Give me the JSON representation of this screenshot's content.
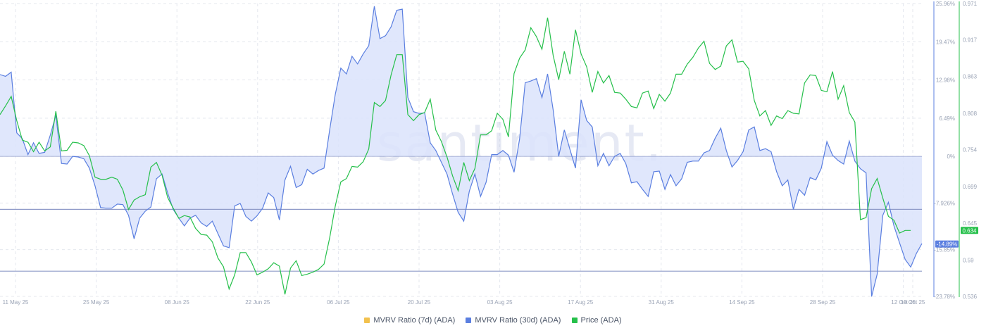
{
  "chart_data": {
    "type": "line",
    "watermark": "·santiment.",
    "x_tick_labels": [
      "11 May 25",
      "25 May 25",
      "08 Jun 25",
      "22 Jun 25",
      "06 Jul 25",
      "20 Jul 25",
      "03 Aug 25",
      "17 Aug 25",
      "31 Aug 25",
      "14 Sep 25",
      "28 Sep 25",
      "12 Oct 25",
      "19 Oct 25"
    ],
    "y_left_ticks": [
      "25.96%",
      "19.47%",
      "12.98%",
      "6.49%",
      "0%",
      "-7.926%",
      "-15.85%",
      "-23.78%"
    ],
    "y_right_ticks": [
      "0.971",
      "0.917",
      "0.863",
      "0.808",
      "0.754",
      "0.699",
      "0.645",
      "0.59",
      "0.536"
    ],
    "y_left_range": [
      -23.78,
      25.96
    ],
    "y_right_range": [
      0.536,
      0.971
    ],
    "current_badges": {
      "mvrv_30d": "-14.89%",
      "price": "0.634"
    },
    "colors": {
      "mvrv_7d": "#f2c14e",
      "mvrv_30d": "#5b7fe0",
      "price": "#26c04b",
      "fill": "#dbe3fb",
      "grid": "#e4e7ee",
      "ref": "#8f9bc9"
    },
    "reference_levels": [
      -9.0,
      -19.5
    ],
    "series": [
      {
        "name": "MVRV Ratio (7d) (ADA)",
        "values": []
      },
      {
        "name": "MVRV Ratio (30d) (ADA)",
        "values": [
          13.9,
          13.6,
          14.3,
          4.0,
          3.0,
          0.3,
          2.3,
          0.5,
          0.7,
          3.6,
          7.0,
          -1.2,
          -1.3,
          0.0,
          -0.1,
          -0.4,
          -2.0,
          -5.0,
          -8.7,
          -8.8,
          -8.8,
          -8.1,
          -8.2,
          -10.0,
          -14.0,
          -10.5,
          -9.3,
          -8.6,
          -3.8,
          -3.0,
          -6.2,
          -9.0,
          -10.5,
          -11.8,
          -10.5,
          -10.0,
          -11.3,
          -11.9,
          -11.0,
          -13.1,
          -15.2,
          -15.5,
          -8.4,
          -8.0,
          -10.2,
          -11.0,
          -10.1,
          -8.8,
          -6.2,
          -7.0,
          -10.8,
          -4.0,
          -1.7,
          -5.3,
          -4.8,
          -2.2,
          -3.0,
          -2.4,
          -2.0,
          4.5,
          10.5,
          15.0,
          14.0,
          17.0,
          15.7,
          17.4,
          18.8,
          25.5,
          20.0,
          20.5,
          22.0,
          24.8,
          25.0,
          10.0,
          7.6,
          7.3,
          7.4,
          2.3,
          1.0,
          -1.0,
          -3.0,
          -6.4,
          -9.5,
          -11.0,
          -5.9,
          -3.0,
          -6.8,
          -4.4,
          0.3,
          0.3,
          1.0,
          0.2,
          -2.7,
          3.0,
          12.5,
          12.8,
          13.2,
          10.0,
          14.0,
          7.9,
          0.0,
          4.5,
          1.2,
          -2.0,
          9.6,
          6.1,
          5.0,
          -1.6,
          0.5,
          -1.6,
          0.0,
          0.5,
          -1.2,
          -4.5,
          -4.3,
          -5.6,
          -6.8,
          -2.6,
          -2.5,
          -5.6,
          -3.1,
          -5.0,
          -3.8,
          -1.0,
          -0.8,
          -0.8,
          0.6,
          1.0,
          3.1,
          4.8,
          1.0,
          -1.8,
          -0.7,
          0.8,
          4.5,
          5.0,
          1.0,
          1.3,
          0.8,
          -2.6,
          -5.0,
          -4.0,
          -9.0,
          -5.6,
          -6.6,
          -3.6,
          -4.0,
          -2.0,
          2.5,
          0.2,
          -0.7,
          -1.3,
          2.6,
          -0.8,
          -2.1,
          -2.8,
          -23.8,
          -20.0,
          -10.0,
          -7.8,
          -11.8,
          -14.7,
          -17.5,
          -18.8,
          -16.5,
          -14.8
        ]
      },
      {
        "name": "Price (ADA)",
        "values": [
          0.806,
          0.819,
          0.833,
          0.797,
          0.768,
          0.765,
          0.751,
          0.765,
          0.752,
          0.758,
          0.811,
          0.752,
          0.753,
          0.765,
          0.764,
          0.76,
          0.745,
          0.713,
          0.71,
          0.71,
          0.713,
          0.71,
          0.694,
          0.665,
          0.679,
          0.684,
          0.687,
          0.728,
          0.735,
          0.716,
          0.683,
          0.667,
          0.652,
          0.656,
          0.654,
          0.637,
          0.628,
          0.627,
          0.617,
          0.593,
          0.58,
          0.547,
          0.568,
          0.601,
          0.601,
          0.587,
          0.568,
          0.572,
          0.577,
          0.586,
          0.581,
          0.539,
          0.578,
          0.589,
          0.567,
          0.569,
          0.572,
          0.576,
          0.584,
          0.623,
          0.67,
          0.706,
          0.711,
          0.729,
          0.728,
          0.736,
          0.755,
          0.824,
          0.818,
          0.827,
          0.865,
          0.895,
          0.895,
          0.806,
          0.797,
          0.806,
          0.809,
          0.829,
          0.783,
          0.766,
          0.743,
          0.715,
          0.693,
          0.735,
          0.708,
          0.726,
          0.776,
          0.776,
          0.782,
          0.808,
          0.799,
          0.773,
          0.867,
          0.89,
          0.902,
          0.935,
          0.922,
          0.903,
          0.95,
          0.894,
          0.858,
          0.9,
          0.866,
          0.932,
          0.896,
          0.877,
          0.839,
          0.87,
          0.853,
          0.864,
          0.839,
          0.838,
          0.829,
          0.818,
          0.816,
          0.838,
          0.841,
          0.815,
          0.836,
          0.826,
          0.838,
          0.866,
          0.866,
          0.881,
          0.891,
          0.905,
          0.915,
          0.882,
          0.873,
          0.878,
          0.908,
          0.917,
          0.884,
          0.885,
          0.874,
          0.827,
          0.804,
          0.812,
          0.79,
          0.804,
          0.8,
          0.812,
          0.808,
          0.807,
          0.853,
          0.865,
          0.864,
          0.842,
          0.84,
          0.87,
          0.829,
          0.849,
          0.809,
          0.795,
          0.65,
          0.653,
          0.696,
          0.711,
          0.682,
          0.655,
          0.649,
          0.63,
          0.634,
          0.634
        ]
      }
    ]
  }
}
